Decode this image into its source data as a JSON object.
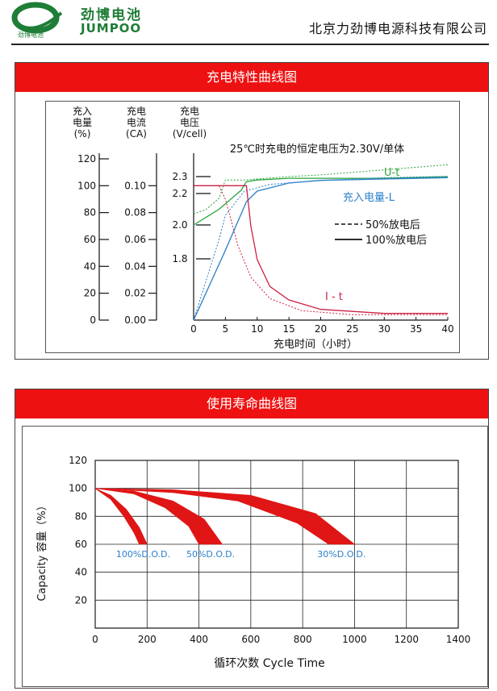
{
  "header": {
    "brand_cn": "劲博电池",
    "brand_en": "JUMPOO",
    "logo_small": "劲博电池",
    "company": "北京力劲博电源科技有限公司"
  },
  "colors": {
    "banner": "#ee1111",
    "brand": "#1e7d36",
    "voltage": "#2aa43a",
    "capacity": "#2a7fc8",
    "current": "#cc2244"
  },
  "section1": {
    "title": "充电特性曲线图"
  },
  "section2": {
    "title": "使用寿命曲线图"
  },
  "chart_data": [
    {
      "type": "line",
      "title": "25℃时充电的恒定电压为2.30V/单体",
      "xlabel": "充电时间（小时）",
      "x_ticks": [
        "0",
        "5",
        "10",
        "15",
        "20",
        "25",
        "30",
        "35",
        "40"
      ],
      "xlim": [
        0,
        40
      ],
      "axis1": {
        "label": [
          "充入",
          "电量",
          "(%)"
        ],
        "ticks": [
          "0",
          "20",
          "40",
          "60",
          "80",
          "100",
          "120"
        ],
        "lim": [
          0,
          120
        ]
      },
      "axis2": {
        "label": [
          "充电",
          "电流",
          "(CA)"
        ],
        "ticks": [
          "0.00",
          "0.02",
          "0.04",
          "0.06",
          "0.08",
          "0.10"
        ],
        "lim": [
          0,
          0.12
        ]
      },
      "axis3": {
        "label": [
          "充电",
          "电压",
          "(V/cell)"
        ],
        "ticks": [
          "1.8",
          "2.0",
          "2.2",
          "2.3"
        ]
      },
      "curve_labels": {
        "voltage": "U-t",
        "capacity": "充入电量-L",
        "current": "I - t"
      },
      "legend": {
        "dashed": "50%放电后",
        "solid": "100%放电后"
      },
      "series": [
        {
          "name": "U-t",
          "style": "solid",
          "x": [
            0,
            2,
            4,
            6,
            7.5,
            8.3,
            10,
            15,
            20,
            30,
            40
          ],
          "y": [
            2.0,
            2.05,
            2.1,
            2.17,
            2.22,
            2.27,
            2.28,
            2.29,
            2.29,
            2.29,
            2.3
          ]
        },
        {
          "name": "U-t",
          "style": "dashed",
          "x": [
            0,
            2,
            4,
            5,
            8,
            15,
            20,
            30,
            40
          ],
          "y": [
            2.07,
            2.1,
            2.17,
            2.28,
            2.28,
            2.3,
            2.31,
            2.34,
            2.37
          ]
        },
        {
          "name": "充入电量-L",
          "style": "solid",
          "x": [
            0,
            5,
            8.3,
            10,
            15,
            20,
            30,
            40
          ],
          "y": [
            0,
            52,
            88,
            96,
            102,
            104,
            105,
            106
          ]
        },
        {
          "name": "充入电量-L",
          "style": "dashed",
          "x": [
            0,
            4,
            5,
            8,
            12,
            20,
            30,
            40
          ],
          "y": [
            0,
            60,
            78,
            96,
            101,
            104,
            106,
            107
          ]
        },
        {
          "name": "I - t",
          "style": "solid",
          "x": [
            0,
            5,
            8.3,
            9,
            10,
            12,
            15,
            20,
            30,
            40
          ],
          "y": [
            0.1,
            0.1,
            0.1,
            0.07,
            0.045,
            0.025,
            0.015,
            0.008,
            0.005,
            0.005
          ]
        },
        {
          "name": "I - t",
          "style": "dashed",
          "x": [
            0,
            4,
            5,
            7,
            9,
            12,
            17,
            25,
            40
          ],
          "y": [
            0.1,
            0.1,
            0.09,
            0.055,
            0.032,
            0.016,
            0.007,
            0.004,
            0.004
          ]
        }
      ]
    },
    {
      "type": "area",
      "xlabel": "循环次数 Cycle Time",
      "ylabel": "Capacity 容量（%）",
      "x_ticks": [
        "0",
        "200",
        "400",
        "600",
        "800",
        "1000",
        "1200",
        "1400"
      ],
      "y_ticks": [
        "20",
        "40",
        "60",
        "80",
        "100",
        "120"
      ],
      "xlim": [
        0,
        1400
      ],
      "ylim": [
        0,
        120
      ],
      "grid": true,
      "series": [
        {
          "name": "100%D.O.D.",
          "upper": [
            [
              0,
              100
            ],
            [
              60,
              95
            ],
            [
              120,
              85
            ],
            [
              170,
              72
            ],
            [
              200,
              60
            ]
          ],
          "lower": [
            [
              0,
              100
            ],
            [
              60,
              92
            ],
            [
              110,
              80
            ],
            [
              150,
              68
            ],
            [
              170,
              60
            ]
          ]
        },
        {
          "name": "50%D.O.D.",
          "upper": [
            [
              0,
              100
            ],
            [
              150,
              98
            ],
            [
              300,
              91
            ],
            [
              420,
              78
            ],
            [
              490,
              60
            ]
          ],
          "lower": [
            [
              0,
              100
            ],
            [
              150,
              96
            ],
            [
              270,
              86
            ],
            [
              360,
              73
            ],
            [
              400,
              60
            ]
          ]
        },
        {
          "name": "30%D.O.D.",
          "upper": [
            [
              0,
              100
            ],
            [
              300,
              99
            ],
            [
              600,
              95
            ],
            [
              850,
              82
            ],
            [
              1000,
              60
            ]
          ],
          "lower": [
            [
              0,
              100
            ],
            [
              300,
              97
            ],
            [
              550,
              91
            ],
            [
              780,
              75
            ],
            [
              900,
              60
            ]
          ]
        }
      ]
    }
  ]
}
